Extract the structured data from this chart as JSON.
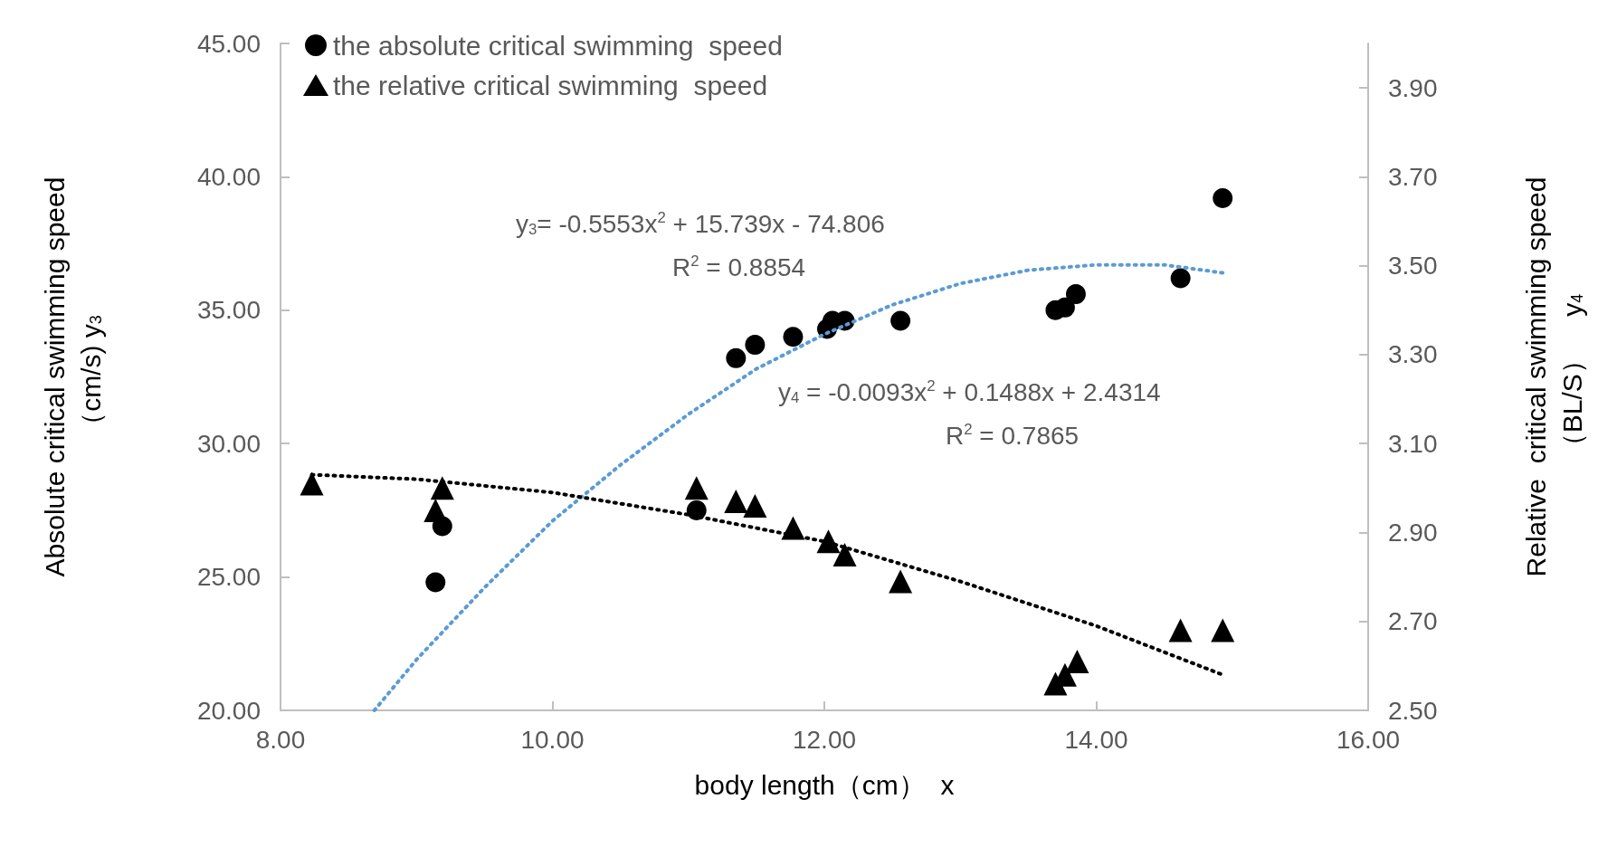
{
  "chart_data": {
    "type": "scatter",
    "xlabel": "body length（cm）  x",
    "ylabel": "Absolute critical swimming speed\n（cm/s) y$_{3}$",
    "y2label": "Relative  critical swimming speed\n（BL/S）    y$_{4}$",
    "xlim": [
      8,
      16
    ],
    "xticks": [
      {
        "value": 8,
        "label": "8.00"
      },
      {
        "value": 10,
        "label": "10.00"
      },
      {
        "value": 12,
        "label": "12.00"
      },
      {
        "value": 14,
        "label": "14.00"
      },
      {
        "value": 16,
        "label": "16.00"
      }
    ],
    "ylim": [
      20,
      45
    ],
    "yticks": [
      {
        "value": 20,
        "label": "20.00"
      },
      {
        "value": 25,
        "label": "25.00"
      },
      {
        "value": 30,
        "label": "30.00"
      },
      {
        "value": 35,
        "label": "35.00"
      },
      {
        "value": 40,
        "label": "40.00"
      },
      {
        "value": 45,
        "label": "45.00"
      }
    ],
    "y2lim": [
      2.5,
      4.0
    ],
    "y2ticks": [
      {
        "value": 2.5,
        "label": "2.50"
      },
      {
        "value": 2.7,
        "label": "2.70"
      },
      {
        "value": 2.9,
        "label": "2.90"
      },
      {
        "value": 3.1,
        "label": "3.10"
      },
      {
        "value": 3.3,
        "label": "3.30"
      },
      {
        "value": 3.5,
        "label": "3.50"
      },
      {
        "value": 3.7,
        "label": "3.70"
      },
      {
        "value": 3.9,
        "label": "3.90"
      }
    ],
    "grid": false,
    "legend": "top left",
    "annotations": [
      "y$_{3}$= -0.5553x$^{2}$ + 15.739x - 74.806",
      "R$^{2}$ = 0.8854",
      "y$_{4}$ = -0.0093x$^{2}$ + 0.1488x + 2.4314",
      "R$^{2}$ = 0.7865"
    ],
    "series": [
      {
        "name": "the absolute critical swimming  speed",
        "marker": "circle",
        "color": "#000000",
        "x": [
          9.14,
          9.19,
          11.06,
          11.35,
          11.49,
          11.77,
          12.02,
          12.06,
          12.15,
          12.56,
          13.7,
          13.77,
          13.85,
          14.62,
          14.93
        ],
        "values": [
          24.8,
          26.9,
          27.5,
          33.2,
          33.7,
          34.0,
          34.3,
          34.6,
          34.6,
          34.6,
          35.0,
          35.1,
          35.6,
          36.2,
          39.2
        ]
      },
      {
        "name": "the relative critical swimming  speed",
        "marker": "triangle",
        "color": "#000000",
        "axis": "y2",
        "x": [
          8.23,
          9.19,
          9.14,
          11.06,
          11.35,
          11.49,
          11.77,
          12.03,
          12.15,
          12.56,
          13.7,
          13.77,
          13.86,
          14.62,
          14.93
        ],
        "values": [
          3.01,
          3.0,
          2.95,
          3.0,
          2.97,
          2.96,
          2.91,
          2.88,
          2.85,
          2.79,
          2.56,
          2.58,
          2.61,
          2.68,
          2.68
        ]
      },
      {
        "type": "line",
        "marker": "none",
        "line_style": "dotted",
        "color": "#5b9bd5",
        "x": [
          8.69,
          9.0,
          9.5,
          10.0,
          10.5,
          11.0,
          11.5,
          12.0,
          12.5,
          13.0,
          13.5,
          14.0,
          14.5,
          14.93
        ],
        "values": [
          20.0,
          21.9,
          24.6,
          27.1,
          29.2,
          31.1,
          32.8,
          34.1,
          35.2,
          36.0,
          36.5,
          36.7,
          36.7,
          36.4
        ]
      },
      {
        "type": "line",
        "marker": "none",
        "line_style": "dotted",
        "color": "#000000",
        "axis": "y2",
        "x": [
          8.23,
          9.0,
          10.0,
          11.0,
          12.0,
          13.0,
          14.0,
          14.93
        ],
        "values": [
          3.03,
          3.02,
          2.99,
          2.94,
          2.88,
          2.79,
          2.69,
          2.58
        ]
      }
    ]
  }
}
